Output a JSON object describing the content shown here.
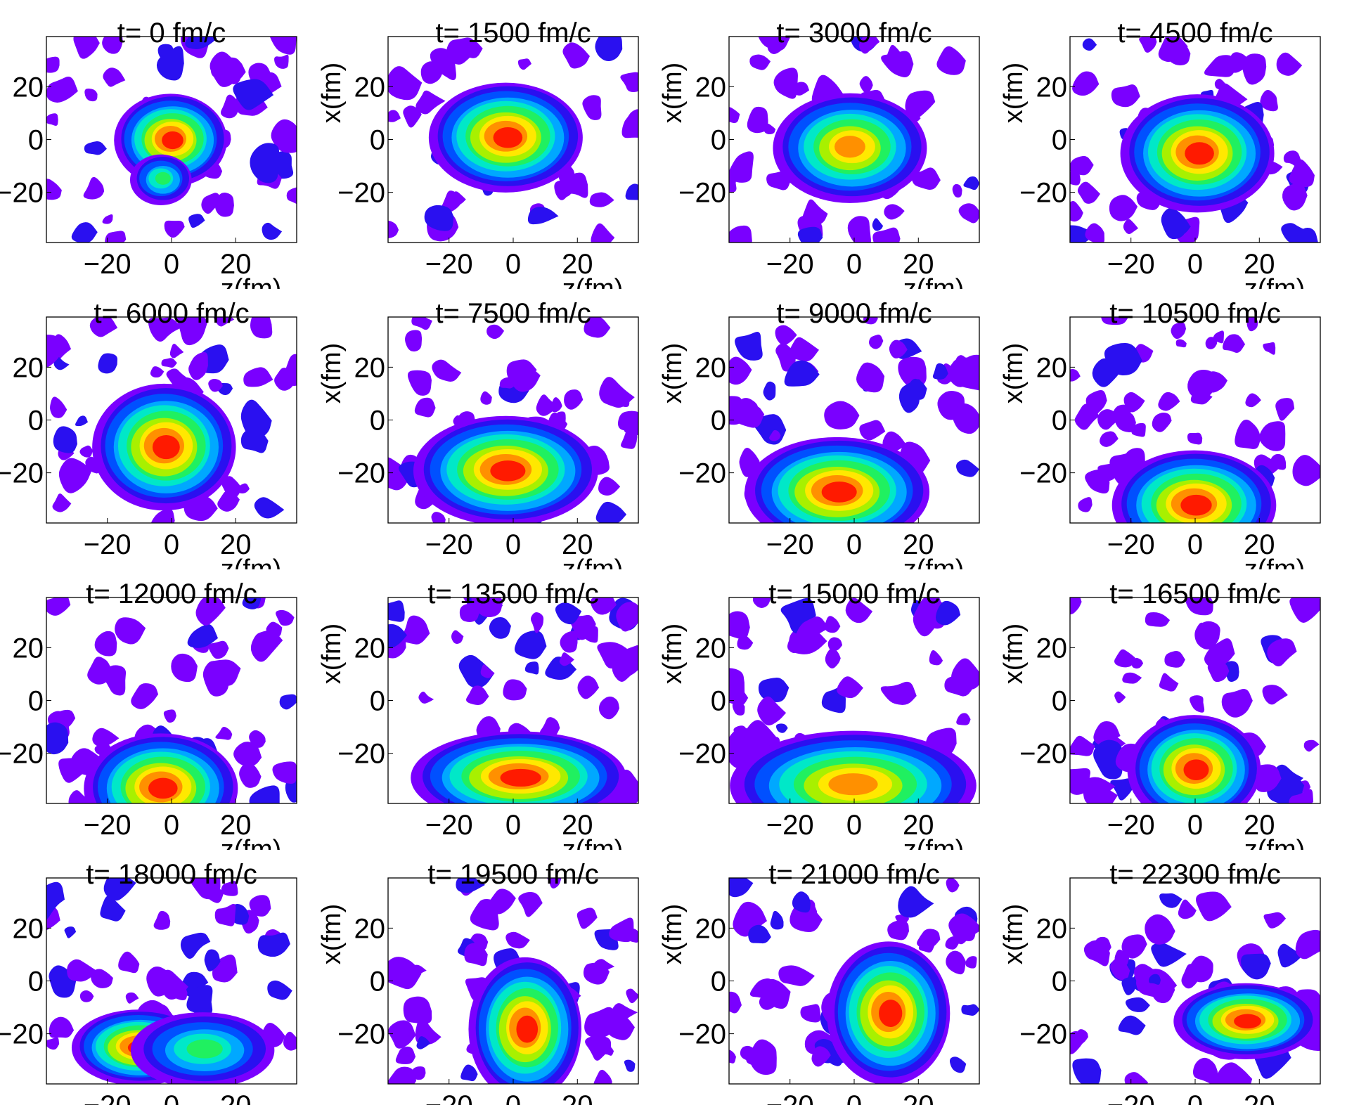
{
  "figure": {
    "xlabel": "z(fm)",
    "ylabel": "x(fm)",
    "colors": {
      "scale": [
        "#7a00ff",
        "#2a10f0",
        "#0050ff",
        "#00a8ff",
        "#00e8c8",
        "#20f060",
        "#a8f000",
        "#ffe800",
        "#ff9000",
        "#ff1a00"
      ],
      "background": "#ffffff",
      "frame": "#000000"
    }
  },
  "chart_data": [
    {
      "type": "heatmap",
      "title": "t= 0 fm/c",
      "x_ticks": [
        "−20",
        "0",
        "20"
      ],
      "y_ticks": [
        "20",
        "0",
        "−20"
      ],
      "xlim": [
        -39,
        39
      ],
      "ylim": [
        -39,
        39
      ],
      "hotspots": [
        {
          "x": 0,
          "z": 0,
          "rx": 11,
          "ry": 11,
          "peak": 1.0
        },
        {
          "x": -15,
          "z": -3,
          "rx": 6,
          "ry": 6,
          "peak": 0.55
        }
      ]
    },
    {
      "type": "heatmap",
      "title": "t= 1500 fm/c",
      "x_ticks": [
        "−20",
        "0",
        "20"
      ],
      "y_ticks": [
        "20",
        "0",
        "−20"
      ],
      "xlim": [
        -39,
        39
      ],
      "ylim": [
        -39,
        39
      ],
      "hotspots": [
        {
          "x": 1,
          "z": -2,
          "rx": 15,
          "ry": 13,
          "peak": 0.95
        }
      ]
    },
    {
      "type": "heatmap",
      "title": "t= 3000 fm/c",
      "x_ticks": [
        "−20",
        "0",
        "20"
      ],
      "y_ticks": [
        "20",
        "0",
        "−20"
      ],
      "xlim": [
        -39,
        39
      ],
      "ylim": [
        -39,
        39
      ],
      "hotspots": [
        {
          "x": -3,
          "z": -1,
          "rx": 15,
          "ry": 13,
          "peak": 0.9
        }
      ]
    },
    {
      "type": "heatmap",
      "title": "t= 4500 fm/c",
      "x_ticks": [
        "−20",
        "0",
        "20"
      ],
      "y_ticks": [
        "20",
        "0",
        "−20"
      ],
      "xlim": [
        -39,
        39
      ],
      "ylim": [
        -39,
        39
      ],
      "hotspots": [
        {
          "x": -5,
          "z": 1,
          "rx": 15,
          "ry": 14,
          "peak": 0.95
        }
      ]
    },
    {
      "type": "heatmap",
      "title": "t= 6000 fm/c",
      "x_ticks": [
        "−20",
        "0",
        "20"
      ],
      "y_ticks": [
        "20",
        "0",
        "−20"
      ],
      "xlim": [
        -39,
        39
      ],
      "ylim": [
        -39,
        39
      ],
      "hotspots": [
        {
          "x": -10,
          "z": -2,
          "rx": 14,
          "ry": 15,
          "peak": 0.95
        }
      ]
    },
    {
      "type": "heatmap",
      "title": "t= 7500 fm/c",
      "x_ticks": [
        "−20",
        "0",
        "20"
      ],
      "y_ticks": [
        "20",
        "0",
        "−20"
      ],
      "xlim": [
        -39,
        39
      ],
      "ylim": [
        -39,
        39
      ],
      "hotspots": [
        {
          "x": -19,
          "z": -2,
          "rx": 18,
          "ry": 13,
          "peak": 0.95
        }
      ]
    },
    {
      "type": "heatmap",
      "title": "t= 9000 fm/c",
      "x_ticks": [
        "−20",
        "0",
        "20"
      ],
      "y_ticks": [
        "20",
        "0",
        "−20"
      ],
      "xlim": [
        -39,
        39
      ],
      "ylim": [
        -39,
        39
      ],
      "hotspots": [
        {
          "x": -27,
          "z": -5,
          "rx": 18,
          "ry": 13,
          "peak": 0.95
        }
      ]
    },
    {
      "type": "heatmap",
      "title": "t= 10500 fm/c",
      "x_ticks": [
        "−20",
        "0",
        "20"
      ],
      "y_ticks": [
        "20",
        "0",
        "−20"
      ],
      "xlim": [
        -39,
        39
      ],
      "ylim": [
        -39,
        39
      ],
      "hotspots": [
        {
          "x": -32,
          "z": 0,
          "rx": 16,
          "ry": 13,
          "peak": 0.95
        }
      ]
    },
    {
      "type": "heatmap",
      "title": "t= 12000 fm/c",
      "x_ticks": [
        "−20",
        "0",
        "20"
      ],
      "y_ticks": [
        "20",
        "0",
        "−20"
      ],
      "xlim": [
        -39,
        39
      ],
      "ylim": [
        -39,
        39
      ],
      "hotspots": [
        {
          "x": -33,
          "z": -3,
          "rx": 15,
          "ry": 13,
          "peak": 1.0
        }
      ]
    },
    {
      "type": "heatmap",
      "title": "t= 13500 fm/c",
      "x_ticks": [
        "−20",
        "0",
        "20"
      ],
      "y_ticks": [
        "20",
        "0",
        "−20"
      ],
      "xlim": [
        -39,
        39
      ],
      "ylim": [
        -39,
        39
      ],
      "hotspots": [
        {
          "x": -29,
          "z": 2,
          "rx": 21,
          "ry": 11,
          "peak": 0.95
        }
      ]
    },
    {
      "type": "heatmap",
      "title": "t= 15000 fm/c",
      "x_ticks": [
        "−20",
        "0",
        "20"
      ],
      "y_ticks": [
        "20",
        "0",
        "−20"
      ],
      "xlim": [
        -39,
        39
      ],
      "ylim": [
        -39,
        39
      ],
      "hotspots": [
        {
          "x": -32,
          "z": 0,
          "rx": 24,
          "ry": 13,
          "peak": 0.9
        }
      ]
    },
    {
      "type": "heatmap",
      "title": "t= 16500 fm/c",
      "x_ticks": [
        "−20",
        "0",
        "20"
      ],
      "y_ticks": [
        "20",
        "0",
        "−20"
      ],
      "xlim": [
        -39,
        39
      ],
      "ylim": [
        -39,
        39
      ],
      "hotspots": [
        {
          "x": -26,
          "z": 0,
          "rx": 13,
          "ry": 13,
          "peak": 0.95
        }
      ]
    },
    {
      "type": "heatmap",
      "title": "t= 18000 fm/c",
      "x_ticks": [
        "−20",
        "0",
        "20"
      ],
      "y_ticks": [
        "20",
        "0",
        "−20"
      ],
      "xlim": [
        -39,
        39
      ],
      "ylim": [
        -39,
        39
      ],
      "hotspots": [
        {
          "x": -25,
          "z": -10,
          "rx": 13,
          "ry": 9,
          "peak": 0.95
        },
        {
          "x": -26,
          "z": 10,
          "rx": 14,
          "ry": 9,
          "peak": 0.6
        }
      ]
    },
    {
      "type": "heatmap",
      "title": "t= 19500 fm/c",
      "x_ticks": [
        "−20",
        "0",
        "20"
      ],
      "y_ticks": [
        "20",
        "0",
        "−20"
      ],
      "xlim": [
        -39,
        39
      ],
      "ylim": [
        -39,
        39
      ],
      "hotspots": [
        {
          "x": -18,
          "z": 4,
          "rx": 11,
          "ry": 17,
          "peak": 0.95
        }
      ]
    },
    {
      "type": "heatmap",
      "title": "t= 21000 fm/c",
      "x_ticks": [
        "−20",
        "0",
        "20"
      ],
      "y_ticks": [
        "20",
        "0",
        "−20"
      ],
      "xlim": [
        -39,
        39
      ],
      "ylim": [
        -39,
        39
      ],
      "hotspots": [
        {
          "x": -12,
          "z": 11,
          "rx": 12,
          "ry": 17,
          "peak": 0.95
        }
      ]
    },
    {
      "type": "heatmap",
      "title": "t= 22300 fm/c",
      "x_ticks": [
        "−20",
        "0",
        "20"
      ],
      "y_ticks": [
        "20",
        "0",
        "−20"
      ],
      "xlim": [
        -39,
        39
      ],
      "ylim": [
        -39,
        39
      ],
      "hotspots": [
        {
          "x": -15,
          "z": 16,
          "rx": 14,
          "ry": 9,
          "peak": 0.95
        }
      ]
    }
  ]
}
